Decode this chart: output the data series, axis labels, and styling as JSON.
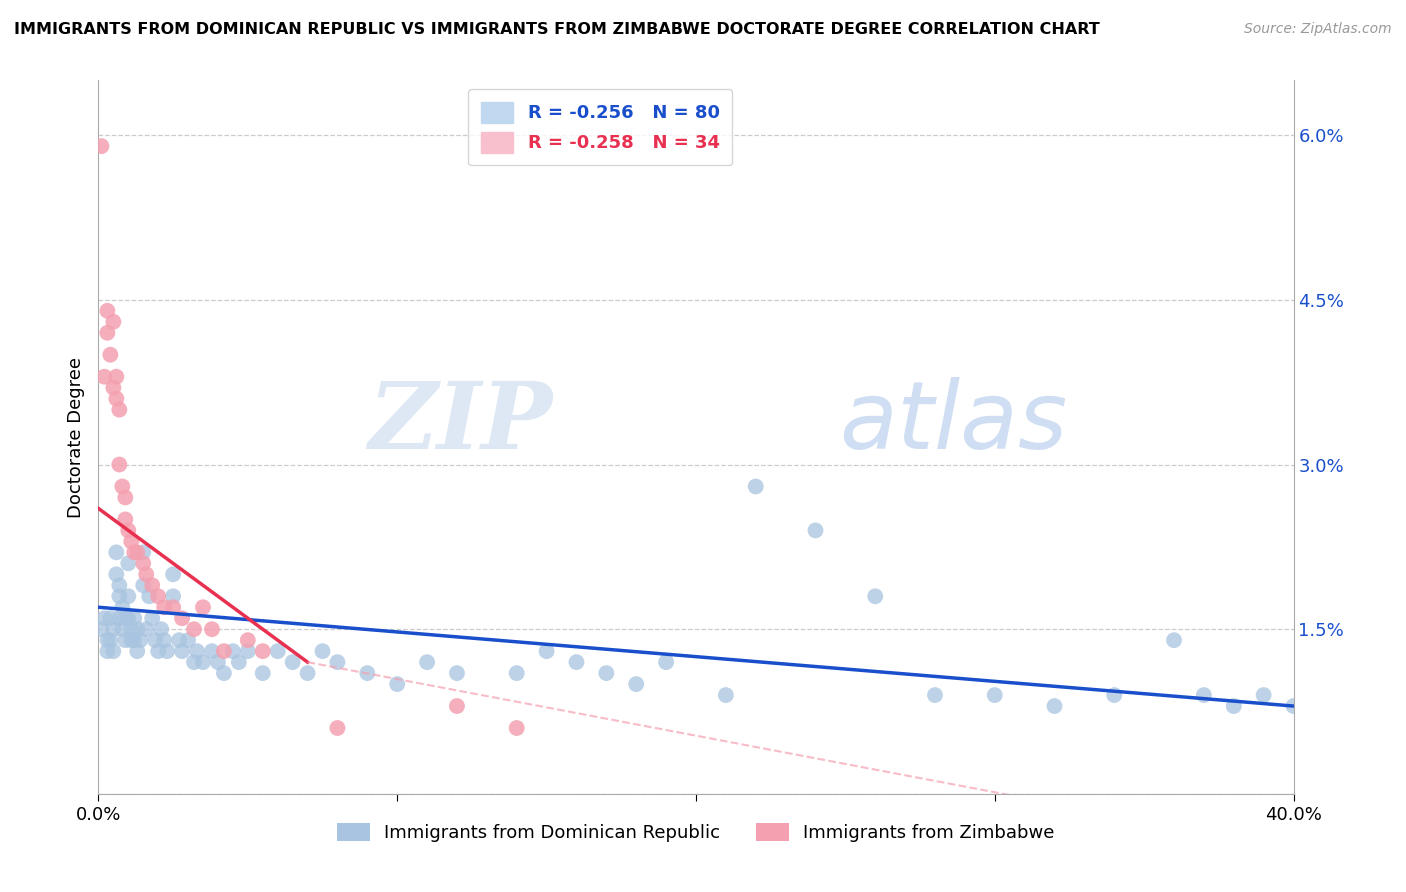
{
  "title": "IMMIGRANTS FROM DOMINICAN REPUBLIC VS IMMIGRANTS FROM ZIMBABWE DOCTORATE DEGREE CORRELATION CHART",
  "source": "Source: ZipAtlas.com",
  "ylabel": "Doctorate Degree",
  "xlim": [
    0.0,
    0.4
  ],
  "ylim": [
    0.0,
    0.065
  ],
  "xticks": [
    0.0,
    0.4
  ],
  "xticklabels": [
    "0.0%",
    "40.0%"
  ],
  "yticks_right": [
    0.0,
    0.015,
    0.03,
    0.045,
    0.06
  ],
  "yticklabels_right": [
    "",
    "1.5%",
    "3.0%",
    "4.5%",
    "6.0%"
  ],
  "blue_color": "#a8c4e0",
  "pink_color": "#f4a0b0",
  "blue_line_color": "#1a4fcc",
  "pink_line_color": "#e83050",
  "pink_dash_color": "#f4a0b0",
  "watermark_zip": "ZIP",
  "watermark_atlas": "atlas",
  "blue_trend": [
    0.0,
    0.4,
    0.017,
    0.008
  ],
  "pink_trend_solid": [
    0.0,
    0.07,
    0.026,
    0.012
  ],
  "pink_trend_dash": [
    0.07,
    0.4,
    0.012,
    -0.005
  ],
  "blue_x": [
    0.001,
    0.002,
    0.003,
    0.003,
    0.004,
    0.004,
    0.005,
    0.005,
    0.006,
    0.006,
    0.007,
    0.007,
    0.007,
    0.008,
    0.008,
    0.009,
    0.009,
    0.01,
    0.01,
    0.01,
    0.011,
    0.011,
    0.012,
    0.012,
    0.013,
    0.013,
    0.014,
    0.015,
    0.015,
    0.016,
    0.017,
    0.018,
    0.019,
    0.02,
    0.021,
    0.022,
    0.023,
    0.025,
    0.025,
    0.027,
    0.028,
    0.03,
    0.032,
    0.033,
    0.035,
    0.038,
    0.04,
    0.042,
    0.045,
    0.047,
    0.05,
    0.055,
    0.06,
    0.065,
    0.07,
    0.075,
    0.08,
    0.09,
    0.1,
    0.11,
    0.12,
    0.14,
    0.15,
    0.16,
    0.17,
    0.18,
    0.19,
    0.21,
    0.22,
    0.24,
    0.26,
    0.28,
    0.3,
    0.32,
    0.34,
    0.36,
    0.37,
    0.38,
    0.39,
    0.4
  ],
  "blue_y": [
    0.015,
    0.016,
    0.014,
    0.013,
    0.016,
    0.014,
    0.015,
    0.013,
    0.022,
    0.02,
    0.019,
    0.018,
    0.016,
    0.017,
    0.015,
    0.016,
    0.014,
    0.021,
    0.018,
    0.016,
    0.015,
    0.014,
    0.016,
    0.014,
    0.015,
    0.013,
    0.014,
    0.022,
    0.019,
    0.015,
    0.018,
    0.016,
    0.014,
    0.013,
    0.015,
    0.014,
    0.013,
    0.02,
    0.018,
    0.014,
    0.013,
    0.014,
    0.012,
    0.013,
    0.012,
    0.013,
    0.012,
    0.011,
    0.013,
    0.012,
    0.013,
    0.011,
    0.013,
    0.012,
    0.011,
    0.013,
    0.012,
    0.011,
    0.01,
    0.012,
    0.011,
    0.011,
    0.013,
    0.012,
    0.011,
    0.01,
    0.012,
    0.009,
    0.028,
    0.024,
    0.018,
    0.009,
    0.009,
    0.008,
    0.009,
    0.014,
    0.009,
    0.008,
    0.009,
    0.008
  ],
  "pink_x": [
    0.001,
    0.002,
    0.003,
    0.003,
    0.004,
    0.005,
    0.005,
    0.006,
    0.006,
    0.007,
    0.007,
    0.008,
    0.009,
    0.009,
    0.01,
    0.011,
    0.012,
    0.013,
    0.015,
    0.016,
    0.018,
    0.02,
    0.022,
    0.025,
    0.028,
    0.032,
    0.035,
    0.038,
    0.042,
    0.05,
    0.055,
    0.08,
    0.12,
    0.14
  ],
  "pink_y": [
    0.059,
    0.038,
    0.044,
    0.042,
    0.04,
    0.043,
    0.037,
    0.038,
    0.036,
    0.035,
    0.03,
    0.028,
    0.027,
    0.025,
    0.024,
    0.023,
    0.022,
    0.022,
    0.021,
    0.02,
    0.019,
    0.018,
    0.017,
    0.017,
    0.016,
    0.015,
    0.017,
    0.015,
    0.013,
    0.014,
    0.013,
    0.006,
    0.008,
    0.006
  ]
}
